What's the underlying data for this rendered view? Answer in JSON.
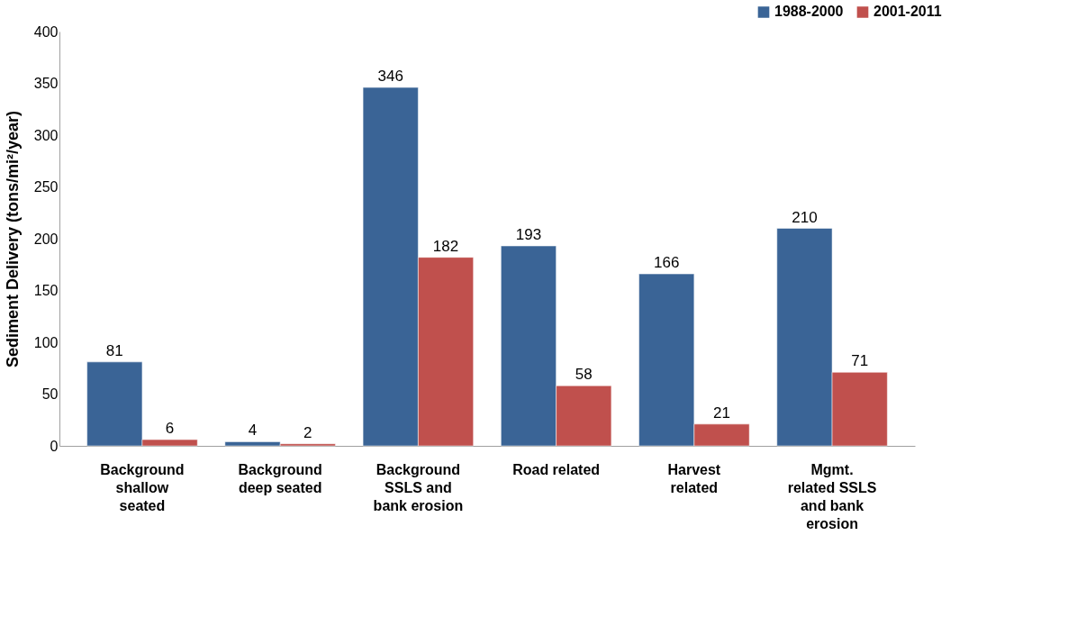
{
  "chart_data": {
    "type": "bar",
    "ylabel": "Sediment Delivery (tons/mi²/year)",
    "categories": [
      "Background shallow seated",
      "Background deep seated",
      "Background SSLS and bank erosion",
      "Road related",
      "Harvest related",
      "Mgmt. related SSLS and bank erosion"
    ],
    "series": [
      {
        "name": "1988-2000",
        "color": "#3a6496",
        "values": [
          81,
          4,
          346,
          193,
          166,
          210
        ]
      },
      {
        "name": "2001-2011",
        "color": "#c0504d",
        "values": [
          6,
          2,
          182,
          58,
          21,
          71
        ]
      }
    ],
    "ylim": [
      0,
      400
    ],
    "yticks": [
      0,
      50,
      100,
      150,
      200,
      250,
      300,
      350,
      400
    ],
    "data_labels": true,
    "legend": "top right",
    "grid": false
  }
}
